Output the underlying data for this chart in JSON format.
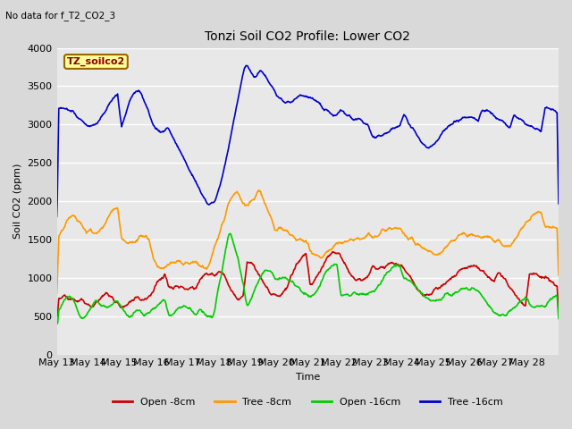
{
  "title": "Tonzi Soil CO2 Profile: Lower CO2",
  "suptitle": "No data for f_T2_CO2_3",
  "ylabel": "Soil CO2 (ppm)",
  "xlabel": "Time",
  "ylim": [
    0,
    4000
  ],
  "bg_color": "#e8e8e8",
  "grid_color": "#ffffff",
  "legend_label": "TZ_soilco2",
  "series": {
    "open_8cm": {
      "color": "#cc0000",
      "label": "Open -8cm"
    },
    "tree_8cm": {
      "color": "#ff9900",
      "label": "Tree -8cm"
    },
    "open_16cm": {
      "color": "#00cc00",
      "label": "Open -16cm"
    },
    "tree_16cm": {
      "color": "#0000cc",
      "label": "Tree -16cm"
    }
  },
  "x_tick_labels": [
    "May 13",
    "May 14",
    "May 15",
    "May 16",
    "May 17",
    "May 18",
    "May 19",
    "May 20",
    "May 21",
    "May 22",
    "May 23",
    "May 24",
    "May 25",
    "May 26",
    "May 27",
    "May 28"
  ],
  "fig_width": 6.4,
  "fig_height": 4.8,
  "dpi": 100
}
